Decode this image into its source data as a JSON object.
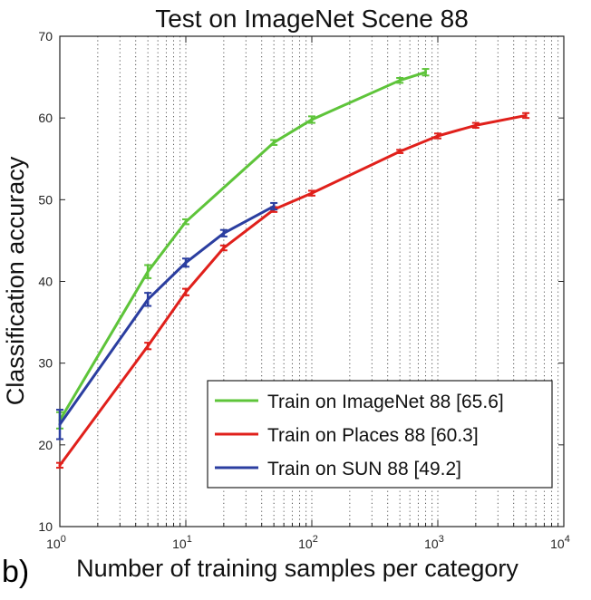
{
  "panel_label": "b)",
  "chart_data": {
    "type": "line",
    "title": "Test on ImageNet Scene 88",
    "xlabel": "Number of training samples per category",
    "ylabel": "Classification accuracy",
    "xscale": "log",
    "xlim": [
      1,
      10000
    ],
    "ylim": [
      10,
      70
    ],
    "x_ticks": [
      {
        "value": 1,
        "base": "10",
        "exp": "0"
      },
      {
        "value": 10,
        "base": "10",
        "exp": "1"
      },
      {
        "value": 100,
        "base": "10",
        "exp": "2"
      },
      {
        "value": 1000,
        "base": "10",
        "exp": "3"
      },
      {
        "value": 10000,
        "base": "10",
        "exp": "4"
      }
    ],
    "y_ticks": [
      10,
      20,
      30,
      40,
      50,
      60,
      70
    ],
    "grid": "x-major-and-minor-dotted",
    "legend_position": "bottom-right",
    "series": [
      {
        "name": "Train on ImageNet 88 [65.6]",
        "color": "#5ec43a",
        "x": [
          1,
          5,
          10,
          50,
          100,
          500,
          800
        ],
        "y": [
          23.0,
          41.2,
          47.3,
          57.0,
          59.8,
          64.6,
          65.6
        ],
        "err": [
          1.0,
          0.8,
          0.3,
          0.3,
          0.4,
          0.3,
          0.4
        ]
      },
      {
        "name": "Train on Places 88 [60.3]",
        "color": "#e0201b",
        "x": [
          1,
          5,
          10,
          20,
          50,
          100,
          500,
          1000,
          2000,
          5000
        ],
        "y": [
          17.5,
          32.1,
          38.7,
          44.1,
          48.8,
          50.8,
          55.9,
          57.8,
          59.1,
          60.3
        ],
        "err": [
          0.3,
          0.4,
          0.4,
          0.3,
          0.3,
          0.3,
          0.2,
          0.3,
          0.3,
          0.3
        ]
      },
      {
        "name": "Train on SUN 88 [49.2]",
        "color": "#2b3ea0",
        "x": [
          1,
          5,
          10,
          20,
          50
        ],
        "y": [
          22.5,
          37.8,
          42.3,
          45.9,
          49.2
        ],
        "err": [
          1.8,
          0.8,
          0.5,
          0.4,
          0.4
        ]
      }
    ]
  }
}
